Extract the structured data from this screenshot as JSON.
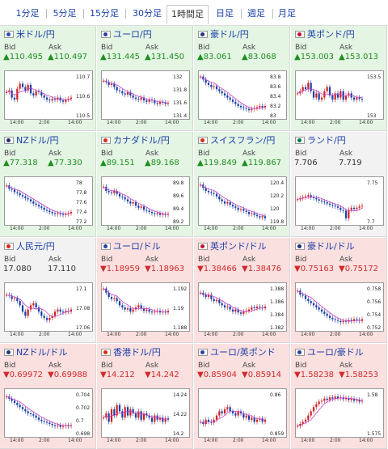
{
  "tabs": [
    {
      "label": "1分足",
      "active": false
    },
    {
      "label": "5分足",
      "active": false
    },
    {
      "label": "15分足",
      "active": false
    },
    {
      "label": "30分足",
      "active": false
    },
    {
      "label": "1時間足",
      "active": true
    },
    {
      "label": "日足",
      "active": false
    },
    {
      "label": "週足",
      "active": false
    },
    {
      "label": "月足",
      "active": false
    }
  ],
  "labels": {
    "bid": "Bid",
    "ask": "Ask"
  },
  "colors": {
    "up": "#1e8f1e",
    "down": "#d02a2a",
    "link": "#1a3fa6",
    "candle_up": "#d02020",
    "candle_down": "#1a3fa6",
    "ma": "#cc44cc"
  },
  "pairs": [
    {
      "name": "米ドル/円",
      "flag": "us-flag",
      "bid": "▲110.495",
      "ask": "▲110.497",
      "dir": "up",
      "ticks": [
        "110.7",
        "110.6",
        "110.5"
      ],
      "times": [
        "14:00",
        "2:00",
        "14:00"
      ],
      "series": [
        0.58,
        0.62,
        0.45,
        0.4,
        0.66,
        0.78,
        0.7,
        0.62,
        0.75,
        0.55,
        0.5,
        0.6,
        0.58,
        0.5,
        0.45,
        0.4,
        0.38,
        0.42,
        0.4,
        0.45,
        0.38,
        0.35,
        0.4,
        0.42,
        0.45
      ]
    },
    {
      "name": "ユーロ/円",
      "flag": "eu-flag",
      "bid": "▲131.445",
      "ask": "▲131.450",
      "dir": "up",
      "ticks": [
        "132",
        "131.8",
        "131.6",
        "131.4"
      ],
      "times": [
        "14:00",
        "2:00",
        "14:00"
      ],
      "series": [
        0.85,
        0.82,
        0.75,
        0.78,
        0.7,
        0.62,
        0.6,
        0.55,
        0.52,
        0.58,
        0.5,
        0.45,
        0.42,
        0.4,
        0.45,
        0.38,
        0.35,
        0.4,
        0.38,
        0.32,
        0.3,
        0.35,
        0.33,
        0.3,
        0.32
      ]
    },
    {
      "name": "豪ドル/円",
      "flag": "au-flag",
      "bid": "▲83.061",
      "ask": "▲83.068",
      "dir": "up",
      "ticks": [
        "83.8",
        "83.6",
        "83.4",
        "83.2",
        "83"
      ],
      "times": [
        "14:00",
        "2:00",
        "14:00"
      ],
      "series": [
        0.95,
        0.88,
        0.8,
        0.75,
        0.7,
        0.72,
        0.65,
        0.6,
        0.55,
        0.5,
        0.45,
        0.4,
        0.35,
        0.3,
        0.25,
        0.22,
        0.2,
        0.18,
        0.15,
        0.18,
        0.2,
        0.22,
        0.25,
        0.22,
        0.25
      ]
    },
    {
      "name": "英ポンド/円",
      "flag": "uk-flag",
      "bid": "▲153.003",
      "ask": "▲153.013",
      "dir": "up",
      "ticks": [
        "153.5",
        "153"
      ],
      "times": [
        "14:00",
        "2:00",
        "14:00"
      ],
      "series": [
        0.55,
        0.6,
        0.7,
        0.65,
        0.8,
        0.6,
        0.45,
        0.55,
        0.4,
        0.45,
        0.6,
        0.7,
        0.5,
        0.4,
        0.55,
        0.45,
        0.6,
        0.4,
        0.5,
        0.55,
        0.45,
        0.4,
        0.45,
        0.42,
        0.4
      ]
    },
    {
      "name": "NZドル/円",
      "flag": "nz-flag",
      "bid": "▲77.318",
      "ask": "▲77.330",
      "dir": "up",
      "ticks": [
        "78",
        "77.8",
        "77.6",
        "77.4",
        "77.2"
      ],
      "times": [
        "14:00",
        "2:00",
        "14:00"
      ],
      "series": [
        0.88,
        0.8,
        0.78,
        0.72,
        0.7,
        0.65,
        0.62,
        0.58,
        0.55,
        0.5,
        0.45,
        0.42,
        0.38,
        0.35,
        0.3,
        0.28,
        0.25,
        0.22,
        0.2,
        0.22,
        0.2,
        0.18,
        0.2,
        0.22,
        0.25
      ]
    },
    {
      "name": "カナダドル/円",
      "flag": "ca-flag",
      "bid": "▲89.151",
      "ask": "▲89.168",
      "dir": "up",
      "ticks": [
        "89.8",
        "89.6",
        "89.4",
        "89.2"
      ],
      "times": [
        "14:00",
        "2:00",
        "14:00"
      ],
      "series": [
        0.85,
        0.75,
        0.72,
        0.7,
        0.75,
        0.68,
        0.62,
        0.6,
        0.55,
        0.5,
        0.45,
        0.48,
        0.4,
        0.35,
        0.38,
        0.3,
        0.28,
        0.25,
        0.22,
        0.2,
        0.22,
        0.18,
        0.2,
        0.18,
        0.2
      ]
    },
    {
      "name": "スイスフラン/円",
      "flag": "ch-flag",
      "bid": "▲119.849",
      "ask": "▲119.867",
      "dir": "up",
      "ticks": [
        "120.4",
        "120.2",
        "120",
        "119.8"
      ],
      "times": [
        "14:00",
        "2:00",
        "14:00"
      ],
      "series": [
        0.9,
        0.82,
        0.75,
        0.72,
        0.7,
        0.68,
        0.62,
        0.55,
        0.5,
        0.45,
        0.48,
        0.42,
        0.38,
        0.35,
        0.3,
        0.32,
        0.28,
        0.25,
        0.2,
        0.22,
        0.18,
        0.15,
        0.12,
        0.15,
        0.1
      ]
    },
    {
      "name": "ランド/円",
      "flag": "za-flag",
      "bid": "7.706",
      "ask": "7.719",
      "dir": "flat",
      "ticks": [
        "7.75",
        "7.7"
      ],
      "times": [
        "14:00",
        "2:00",
        "14:00"
      ],
      "series": [
        0.55,
        0.58,
        0.6,
        0.62,
        0.65,
        0.6,
        0.58,
        0.55,
        0.52,
        0.5,
        0.48,
        0.45,
        0.42,
        0.4,
        0.38,
        0.35,
        0.3,
        0.28,
        0.1,
        0.3,
        0.35,
        0.32,
        0.35,
        0.38,
        0.4
      ]
    },
    {
      "name": "人民元/円",
      "flag": "cn-flag",
      "bid": "17.080",
      "ask": "17.110",
      "dir": "flat",
      "ticks": [
        "17.1",
        "17.08",
        "17.06"
      ],
      "times": [
        "14:00",
        "2:00",
        "14:00"
      ],
      "series": [
        0.8,
        0.78,
        0.7,
        0.72,
        0.65,
        0.55,
        0.4,
        0.3,
        0.45,
        0.55,
        0.6,
        0.5,
        0.4,
        0.3,
        0.25,
        0.2,
        0.25,
        0.3,
        0.4,
        0.45,
        0.4,
        0.38,
        0.42,
        0.4,
        0.45
      ]
    },
    {
      "name": "ユーロ/ドル",
      "flag": "eu-flag",
      "bid": "▼1.18959",
      "ask": "▼1.18963",
      "dir": "down",
      "ticks": [
        "1.192",
        "1.19",
        "1.188"
      ],
      "times": [
        "14:00",
        "2:00",
        "14:00"
      ],
      "series": [
        0.95,
        0.85,
        0.75,
        0.7,
        0.72,
        0.65,
        0.55,
        0.5,
        0.45,
        0.48,
        0.4,
        0.45,
        0.5,
        0.55,
        0.48,
        0.42,
        0.45,
        0.4,
        0.38,
        0.4,
        0.42,
        0.38,
        0.4,
        0.38,
        0.42
      ]
    },
    {
      "name": "英ポンド/ドル",
      "flag": "uk-flag",
      "bid": "▼1.38466",
      "ask": "▼1.38476",
      "dir": "down",
      "ticks": [
        "1.388",
        "1.386",
        "1.384",
        "1.382"
      ],
      "times": [
        "14:00",
        "2:00",
        "14:00"
      ],
      "series": [
        0.85,
        0.8,
        0.75,
        0.8,
        0.7,
        0.65,
        0.68,
        0.6,
        0.55,
        0.5,
        0.52,
        0.45,
        0.4,
        0.45,
        0.38,
        0.35,
        0.4,
        0.42,
        0.45,
        0.5,
        0.48,
        0.52,
        0.5,
        0.48,
        0.52
      ]
    },
    {
      "name": "豪ドル/ドル",
      "flag": "au-flag",
      "bid": "▼0.75163",
      "ask": "▼0.75172",
      "dir": "down",
      "ticks": [
        "0.758",
        "0.756",
        "0.754",
        "0.752"
      ],
      "times": [
        "14:00",
        "2:00",
        "14:00"
      ],
      "series": [
        0.9,
        0.8,
        0.78,
        0.7,
        0.65,
        0.6,
        0.55,
        0.5,
        0.45,
        0.4,
        0.35,
        0.3,
        0.25,
        0.22,
        0.2,
        0.18,
        0.15,
        0.18,
        0.16,
        0.2,
        0.18,
        0.22,
        0.2,
        0.18,
        0.22
      ]
    },
    {
      "name": "NZドル/ドル",
      "flag": "nz-flag",
      "bid": "▼0.69972",
      "ask": "▼0.69988",
      "dir": "down",
      "ticks": [
        "0.704",
        "0.702",
        "0.7",
        "0.698"
      ],
      "times": [
        "14:00",
        "2:00",
        "14:00"
      ],
      "series": [
        0.9,
        0.85,
        0.8,
        0.75,
        0.7,
        0.65,
        0.6,
        0.55,
        0.5,
        0.48,
        0.45,
        0.4,
        0.35,
        0.32,
        0.3,
        0.28,
        0.25,
        0.22,
        0.2,
        0.22,
        0.18,
        0.2,
        0.22,
        0.2,
        0.22
      ]
    },
    {
      "name": "香港ドル/円",
      "flag": "hk-flag",
      "bid": "▼14.212",
      "ask": "▼14.242",
      "dir": "down",
      "ticks": [
        "14.24",
        "14.22",
        "14.2"
      ],
      "times": [
        "14:00",
        "2:00",
        "14:00"
      ],
      "series": [
        0.4,
        0.5,
        0.3,
        0.6,
        0.45,
        0.7,
        0.55,
        0.4,
        0.65,
        0.45,
        0.6,
        0.5,
        0.4,
        0.55,
        0.35,
        0.5,
        0.45,
        0.4,
        0.3,
        0.45,
        0.35,
        0.4,
        0.3,
        0.38,
        0.35
      ]
    },
    {
      "name": "ユーロ/英ポンド",
      "flag": "eu-flag",
      "bid": "▼0.85904",
      "ask": "▼0.85914",
      "dir": "down",
      "ticks": [
        "0.86",
        "0.859"
      ],
      "times": [
        "14:00",
        "2:00",
        "14:00"
      ],
      "series": [
        0.3,
        0.25,
        0.35,
        0.3,
        0.28,
        0.35,
        0.45,
        0.55,
        0.5,
        0.6,
        0.65,
        0.55,
        0.5,
        0.45,
        0.55,
        0.5,
        0.4,
        0.45,
        0.35,
        0.4,
        0.3,
        0.35,
        0.38,
        0.3,
        0.35
      ]
    },
    {
      "name": "ユーロ/豪ドル",
      "flag": "eu-flag",
      "bid": "▼1.58238",
      "ask": "▼1.58253",
      "dir": "down",
      "ticks": [
        "1.58",
        "1.575"
      ],
      "times": [
        "14:00",
        "2:00",
        "14:00"
      ],
      "series": [
        0.2,
        0.25,
        0.3,
        0.35,
        0.45,
        0.55,
        0.65,
        0.72,
        0.78,
        0.8,
        0.85,
        0.82,
        0.88,
        0.85,
        0.9,
        0.86,
        0.88,
        0.84,
        0.86,
        0.82,
        0.85,
        0.8,
        0.82,
        0.78,
        0.8
      ]
    }
  ]
}
